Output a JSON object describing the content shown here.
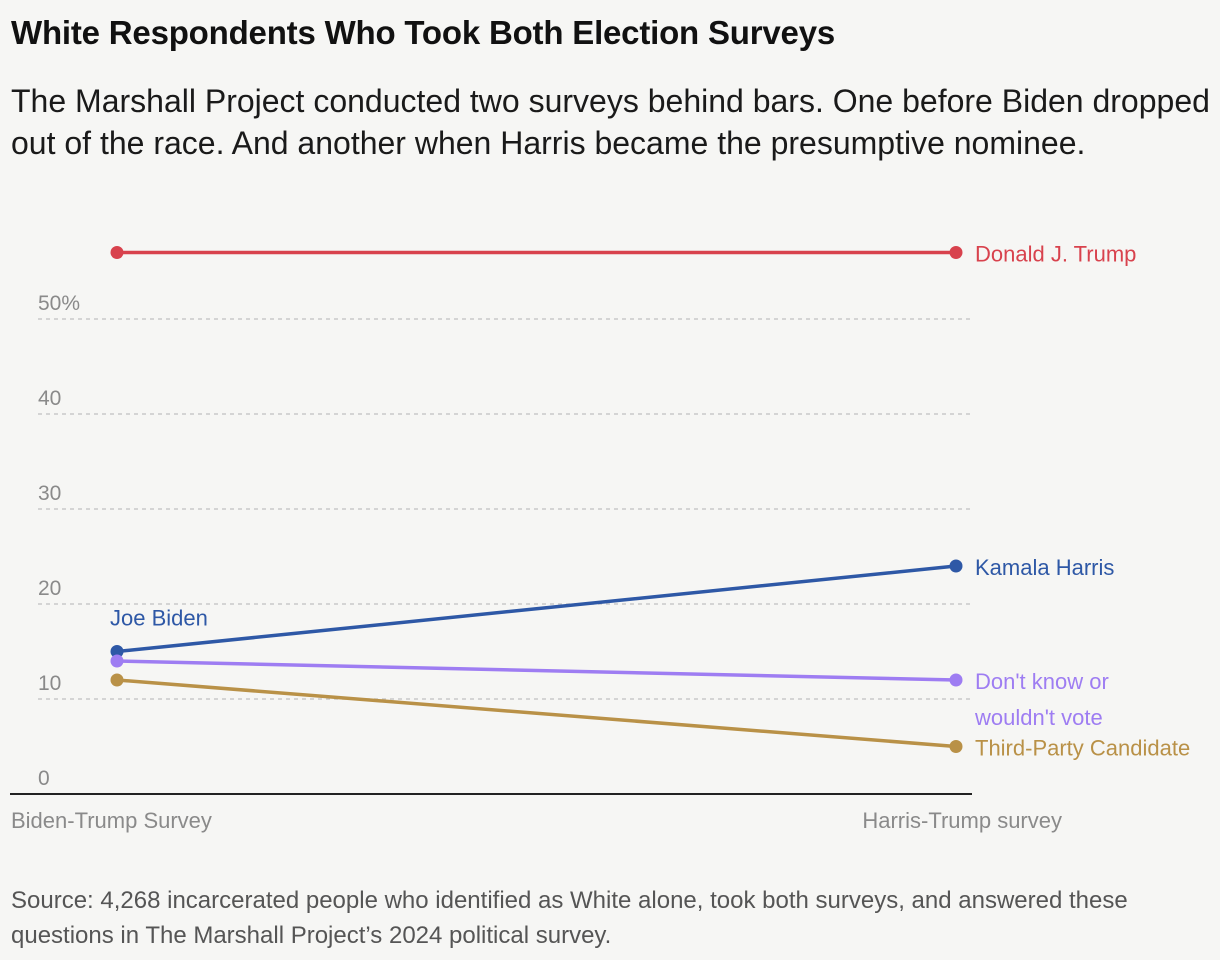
{
  "header": {
    "title": "White Respondents Who Took Both Election Surveys",
    "subtitle": "The Marshall Project conducted two surveys behind bars. One before Biden dropped out of the race. And another when Harris became the presumptive nominee."
  },
  "footer": {
    "source": "Source: 4,268 incarcerated people who identified as White alone, took both surveys, and answered these questions in The Marshall Project’s 2024 political survey."
  },
  "chart_data": {
    "type": "line",
    "x": [
      "Biden-Trump Survey",
      "Harris-Trump survey"
    ],
    "ylim": [
      0,
      60
    ],
    "yticks": [
      0,
      10,
      20,
      30,
      40,
      50
    ],
    "ytick_labels": [
      "0",
      "10",
      "20",
      "30",
      "40",
      "50%"
    ],
    "grid": true,
    "series": [
      {
        "name": "Donald J. Trump",
        "label_lines": [
          "Donald J. Trump"
        ],
        "values": [
          57,
          57
        ],
        "color": "#d8424d"
      },
      {
        "name": "Kamala Harris",
        "label_lines": [
          "Kamala Harris"
        ],
        "start_label": "Joe Biden",
        "values": [
          15,
          24
        ],
        "color": "#2e58a6"
      },
      {
        "name": "Don't know or wouldn't vote",
        "label_lines": [
          "Don't know or",
          "wouldn't vote"
        ],
        "values": [
          14,
          12
        ],
        "color": "#9e7df2"
      },
      {
        "name": "Third-Party Candidate",
        "label_lines": [
          "Third-Party Candidate"
        ],
        "values": [
          12,
          5
        ],
        "color": "#b99147"
      }
    ]
  }
}
